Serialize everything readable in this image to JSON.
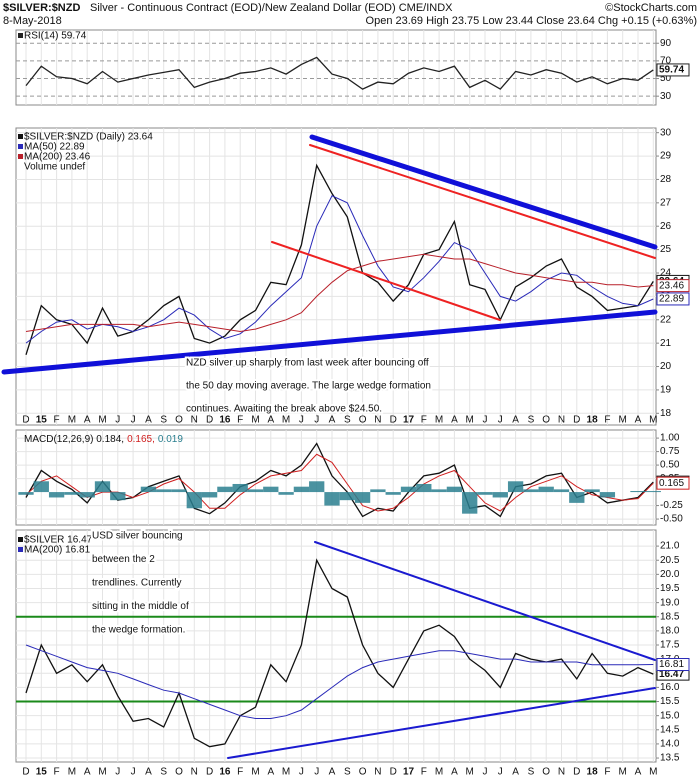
{
  "header": {
    "symbol": "$SILVER:$NZD",
    "description": "Silver - Continuous Contract (EOD)/New Zealand Dollar (EOD) CME/INDX",
    "credit": "©StockCharts.com",
    "date": "8-May-2018",
    "quote": "Open 23.69 High 23.75 Low 23.44 Close 23.64 Chg +0.15 (+0.63%)"
  },
  "chart_data": [
    {
      "type": "line",
      "categories": [
        "D",
        "15",
        "F",
        "M",
        "A",
        "M",
        "J",
        "J",
        "A",
        "S",
        "O",
        "N",
        "D",
        "16",
        "F",
        "M",
        "A",
        "M",
        "J",
        "J",
        "A",
        "S",
        "O",
        "N",
        "D",
        "17",
        "F",
        "M",
        "A",
        "M",
        "J",
        "J",
        "A",
        "S",
        "O",
        "N",
        "D",
        "18",
        "F",
        "M",
        "A",
        "M"
      ],
      "series": [
        {
          "name": "RSI(14) 59.74",
          "color": "#222222",
          "values": [
            42,
            64,
            52,
            50,
            44,
            58,
            46,
            50,
            54,
            57,
            60,
            40,
            46,
            50,
            56,
            58,
            62,
            55,
            66,
            74,
            55,
            50,
            38,
            46,
            44,
            56,
            62,
            58,
            64,
            40,
            48,
            38,
            58,
            54,
            60,
            56,
            46,
            52,
            44,
            50,
            48,
            59.74
          ]
        }
      ],
      "ylim": [
        20,
        105
      ],
      "yticks": [
        30,
        50,
        70,
        90
      ],
      "grid": true
    },
    {
      "type": "line",
      "categories": [
        "D",
        "15",
        "F",
        "M",
        "A",
        "M",
        "J",
        "J",
        "A",
        "S",
        "O",
        "N",
        "D",
        "16",
        "F",
        "M",
        "A",
        "M",
        "J",
        "J",
        "A",
        "S",
        "O",
        "N",
        "D",
        "17",
        "F",
        "M",
        "A",
        "M",
        "J",
        "J",
        "A",
        "S",
        "O",
        "N",
        "D",
        "18",
        "F",
        "M",
        "A",
        "M"
      ],
      "series": [
        {
          "name": "$SILVER:$NZD (Daily) 23.64",
          "color": "#111111",
          "values": [
            20.5,
            22.6,
            22.0,
            21.8,
            21.0,
            22.5,
            21.3,
            21.5,
            22.0,
            22.6,
            23.0,
            21.2,
            21.0,
            21.3,
            22.0,
            22.4,
            23.6,
            23.5,
            25.2,
            28.6,
            27.4,
            26.4,
            24.0,
            23.6,
            22.8,
            23.5,
            24.8,
            25.0,
            26.2,
            23.5,
            23.3,
            22.0,
            23.4,
            23.8,
            24.3,
            24.6,
            23.4,
            23.0,
            22.4,
            22.5,
            22.6,
            23.64
          ]
        },
        {
          "name": "MA(50) 22.89",
          "color": "#2a2ab8",
          "values": [
            21.0,
            21.5,
            21.9,
            22.0,
            21.6,
            21.8,
            21.7,
            21.5,
            21.7,
            22.0,
            22.5,
            22.2,
            21.6,
            21.2,
            21.4,
            21.9,
            22.6,
            23.2,
            23.8,
            26.0,
            27.3,
            27.0,
            25.6,
            24.3,
            23.4,
            23.2,
            23.8,
            24.5,
            25.3,
            25.0,
            24.0,
            23.0,
            22.8,
            23.2,
            23.7,
            24.0,
            23.9,
            23.4,
            23.0,
            22.7,
            22.6,
            22.89
          ]
        },
        {
          "name": "MA(200) 23.46",
          "color": "#b8202a",
          "values": [
            21.5,
            21.6,
            21.7,
            21.8,
            21.8,
            21.8,
            21.8,
            21.8,
            21.7,
            21.8,
            21.9,
            21.8,
            21.7,
            21.6,
            21.5,
            21.6,
            21.8,
            22.0,
            22.3,
            23.0,
            23.6,
            24.1,
            24.3,
            24.5,
            24.6,
            24.7,
            24.8,
            24.7,
            24.6,
            24.6,
            24.4,
            24.2,
            24.0,
            23.9,
            23.8,
            23.7,
            23.6,
            23.6,
            23.5,
            23.5,
            23.4,
            23.46
          ]
        }
      ],
      "legend_extra": "Volume undef",
      "annotation": [
        "NZD silver up sharply from last week after bouncing off",
        "the 50 day moving average. The large wedge formation",
        "continues. Awaiting the break above $24.50."
      ],
      "ylim": [
        17.5,
        30.2
      ],
      "yticks": [
        18,
        19,
        20,
        21,
        22,
        23,
        24,
        25,
        26,
        27,
        28,
        29,
        30
      ],
      "grid": true
    },
    {
      "type": "line",
      "categories": [
        "D",
        "15",
        "F",
        "M",
        "A",
        "M",
        "J",
        "J",
        "A",
        "S",
        "O",
        "N",
        "D",
        "16",
        "F",
        "M",
        "A",
        "M",
        "J",
        "J",
        "A",
        "S",
        "O",
        "N",
        "D",
        "17",
        "F",
        "M",
        "A",
        "M",
        "J",
        "J",
        "A",
        "S",
        "O",
        "N",
        "D",
        "18",
        "F",
        "M",
        "A",
        "M"
      ],
      "legend_parts": [
        "MACD(12,26,9) 0.184,",
        "0.165,",
        "0.019"
      ],
      "series": [
        {
          "color": "#111111",
          "values": [
            -0.1,
            0.4,
            0.2,
            0.05,
            -0.2,
            0.2,
            -0.15,
            -0.1,
            0.1,
            0.2,
            0.3,
            -0.3,
            -0.4,
            -0.2,
            0.1,
            0.2,
            0.4,
            0.3,
            0.5,
            0.9,
            0.3,
            0.0,
            -0.45,
            -0.3,
            -0.35,
            0.0,
            0.3,
            0.35,
            0.5,
            -0.3,
            -0.25,
            -0.45,
            0.1,
            0.15,
            0.3,
            0.35,
            -0.1,
            0.0,
            -0.2,
            -0.15,
            -0.1,
            0.184
          ]
        },
        {
          "color": "#d02020",
          "values": [
            -0.05,
            0.2,
            0.3,
            0.1,
            -0.1,
            0.0,
            0.0,
            -0.1,
            0.0,
            0.15,
            0.25,
            0.0,
            -0.3,
            -0.3,
            -0.05,
            0.15,
            0.3,
            0.35,
            0.4,
            0.7,
            0.55,
            0.15,
            -0.25,
            -0.35,
            -0.3,
            -0.1,
            0.15,
            0.3,
            0.4,
            0.1,
            -0.2,
            -0.35,
            -0.1,
            0.1,
            0.2,
            0.3,
            0.1,
            -0.05,
            -0.1,
            -0.15,
            -0.12,
            0.165
          ]
        },
        {
          "color": "#2a7f8f",
          "style": "histogram",
          "values": [
            -0.05,
            0.2,
            -0.1,
            -0.05,
            -0.1,
            0.2,
            -0.15,
            0,
            0.1,
            0.05,
            0.05,
            -0.3,
            -0.1,
            0.1,
            0.15,
            0.05,
            0.1,
            -0.05,
            0.1,
            0.2,
            -0.25,
            -0.15,
            -0.2,
            0.05,
            -0.05,
            0.1,
            0.15,
            0.05,
            0.1,
            -0.4,
            -0.05,
            -0.1,
            0.2,
            0.05,
            0.1,
            0.05,
            -0.2,
            0.05,
            -0.1,
            0,
            0.02,
            0.019
          ]
        }
      ],
      "ylim": [
        -0.61,
        1.15
      ],
      "yticks": [
        {
          "value": 1,
          "label": "1.00"
        },
        0.75,
        {
          "value": 0.5,
          "label": "0.50"
        },
        0.25,
        -0.25,
        {
          "value": -0.5,
          "label": "-0.50"
        }
      ],
      "grid": true
    },
    {
      "type": "line",
      "categories": [
        "D",
        "15",
        "F",
        "M",
        "A",
        "M",
        "J",
        "J",
        "A",
        "S",
        "O",
        "N",
        "D",
        "16",
        "F",
        "M",
        "A",
        "M",
        "J",
        "J",
        "A",
        "S",
        "O",
        "N",
        "D",
        "17",
        "F",
        "M",
        "A",
        "M",
        "J",
        "J",
        "A",
        "S",
        "O",
        "N",
        "D",
        "18",
        "F",
        "M",
        "A",
        "M"
      ],
      "series": [
        {
          "name": "$SILVER 16.47",
          "color": "#111111",
          "values": [
            15.8,
            17.5,
            16.5,
            16.8,
            16.2,
            16.8,
            15.7,
            14.8,
            14.9,
            14.6,
            15.8,
            14.2,
            13.9,
            14.0,
            15.0,
            15.3,
            16.8,
            16.2,
            17.5,
            20.5,
            19.5,
            19.2,
            17.5,
            16.5,
            16.0,
            17.0,
            18.0,
            18.2,
            17.8,
            17.0,
            16.6,
            16.0,
            17.2,
            17.0,
            16.9,
            17.0,
            16.3,
            17.2,
            16.5,
            16.4,
            16.7,
            16.47
          ]
        },
        {
          "name": "MA(200) 16.81",
          "color": "#2a2ab8",
          "values": [
            17.5,
            17.3,
            17.1,
            16.9,
            16.7,
            16.6,
            16.5,
            16.3,
            16.1,
            15.9,
            15.8,
            15.6,
            15.4,
            15.2,
            15.0,
            14.9,
            14.9,
            15.0,
            15.2,
            15.6,
            16.0,
            16.4,
            16.7,
            16.9,
            17.0,
            17.1,
            17.2,
            17.3,
            17.3,
            17.2,
            17.1,
            17.0,
            17.0,
            16.9,
            16.9,
            16.9,
            16.9,
            16.8,
            16.8,
            16.8,
            16.8,
            16.81
          ]
        }
      ],
      "reference_lines": [
        18.5,
        15.5
      ],
      "reference_color": "#1a8a1a",
      "annotation": [
        "USD silver bouncing",
        "between the 2",
        "trendlines. Currently",
        "sitting in the middle of",
        "the wedge formation."
      ],
      "ylim": [
        13.36,
        21.57
      ],
      "yticks": [
        13.5,
        {
          "value": 14,
          "label": "14.0"
        },
        14.5,
        {
          "value": 15,
          "label": "15.0"
        },
        15.5,
        {
          "value": 16,
          "label": "16.0"
        },
        16.5,
        {
          "value": 17,
          "label": "17.0"
        },
        17.5,
        {
          "value": 18,
          "label": "18.0"
        },
        18.5,
        {
          "value": 19,
          "label": "19.0"
        },
        19.5,
        {
          "value": 20,
          "label": "20.0"
        },
        20.5,
        {
          "value": 21,
          "label": "21.0"
        }
      ],
      "grid": true
    }
  ]
}
